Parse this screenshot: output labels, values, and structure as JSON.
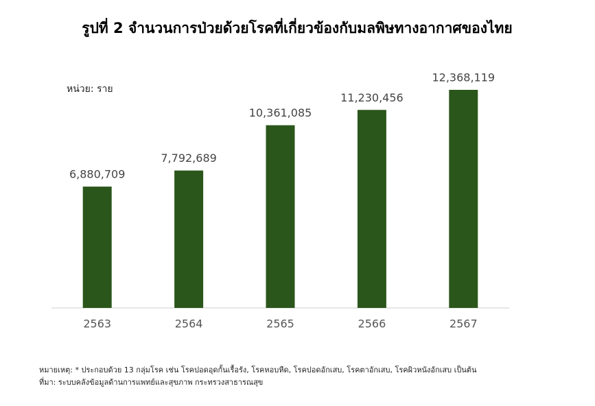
{
  "chart_data": {
    "type": "bar",
    "title": "รูปที่ 2 จำนวนการป่วยด้วยโรคที่เกี่ยวข้องกับมลพิษทางอากาศของไทย",
    "unit_label": "หน่วย: ราย",
    "categories": [
      "2563",
      "2564",
      "2565",
      "2566",
      "2567"
    ],
    "values": [
      6880709,
      7792689,
      10361085,
      11230456,
      12368119
    ],
    "value_labels": [
      "6,880,709",
      "7,792,689",
      "10,361,085",
      "11,230,456",
      "12,368,119"
    ],
    "color": "#2b561b",
    "notes": [
      "หมายเหตุ: * ประกอบด้วย 13 กลุ่มโรค เช่น โรคปอดอุดกั้นเรื้อรัง, โรคหอบหืด, โรคปอดอักเสบ, โรคตาอักเสบ, โรคผิวหนังอักเสบ เป็นต้น",
      "ที่มา: ระบบคลังข้อมูลด้านการแพทย์และสุขภาพ กระทรวงสาธารณสุข"
    ]
  }
}
